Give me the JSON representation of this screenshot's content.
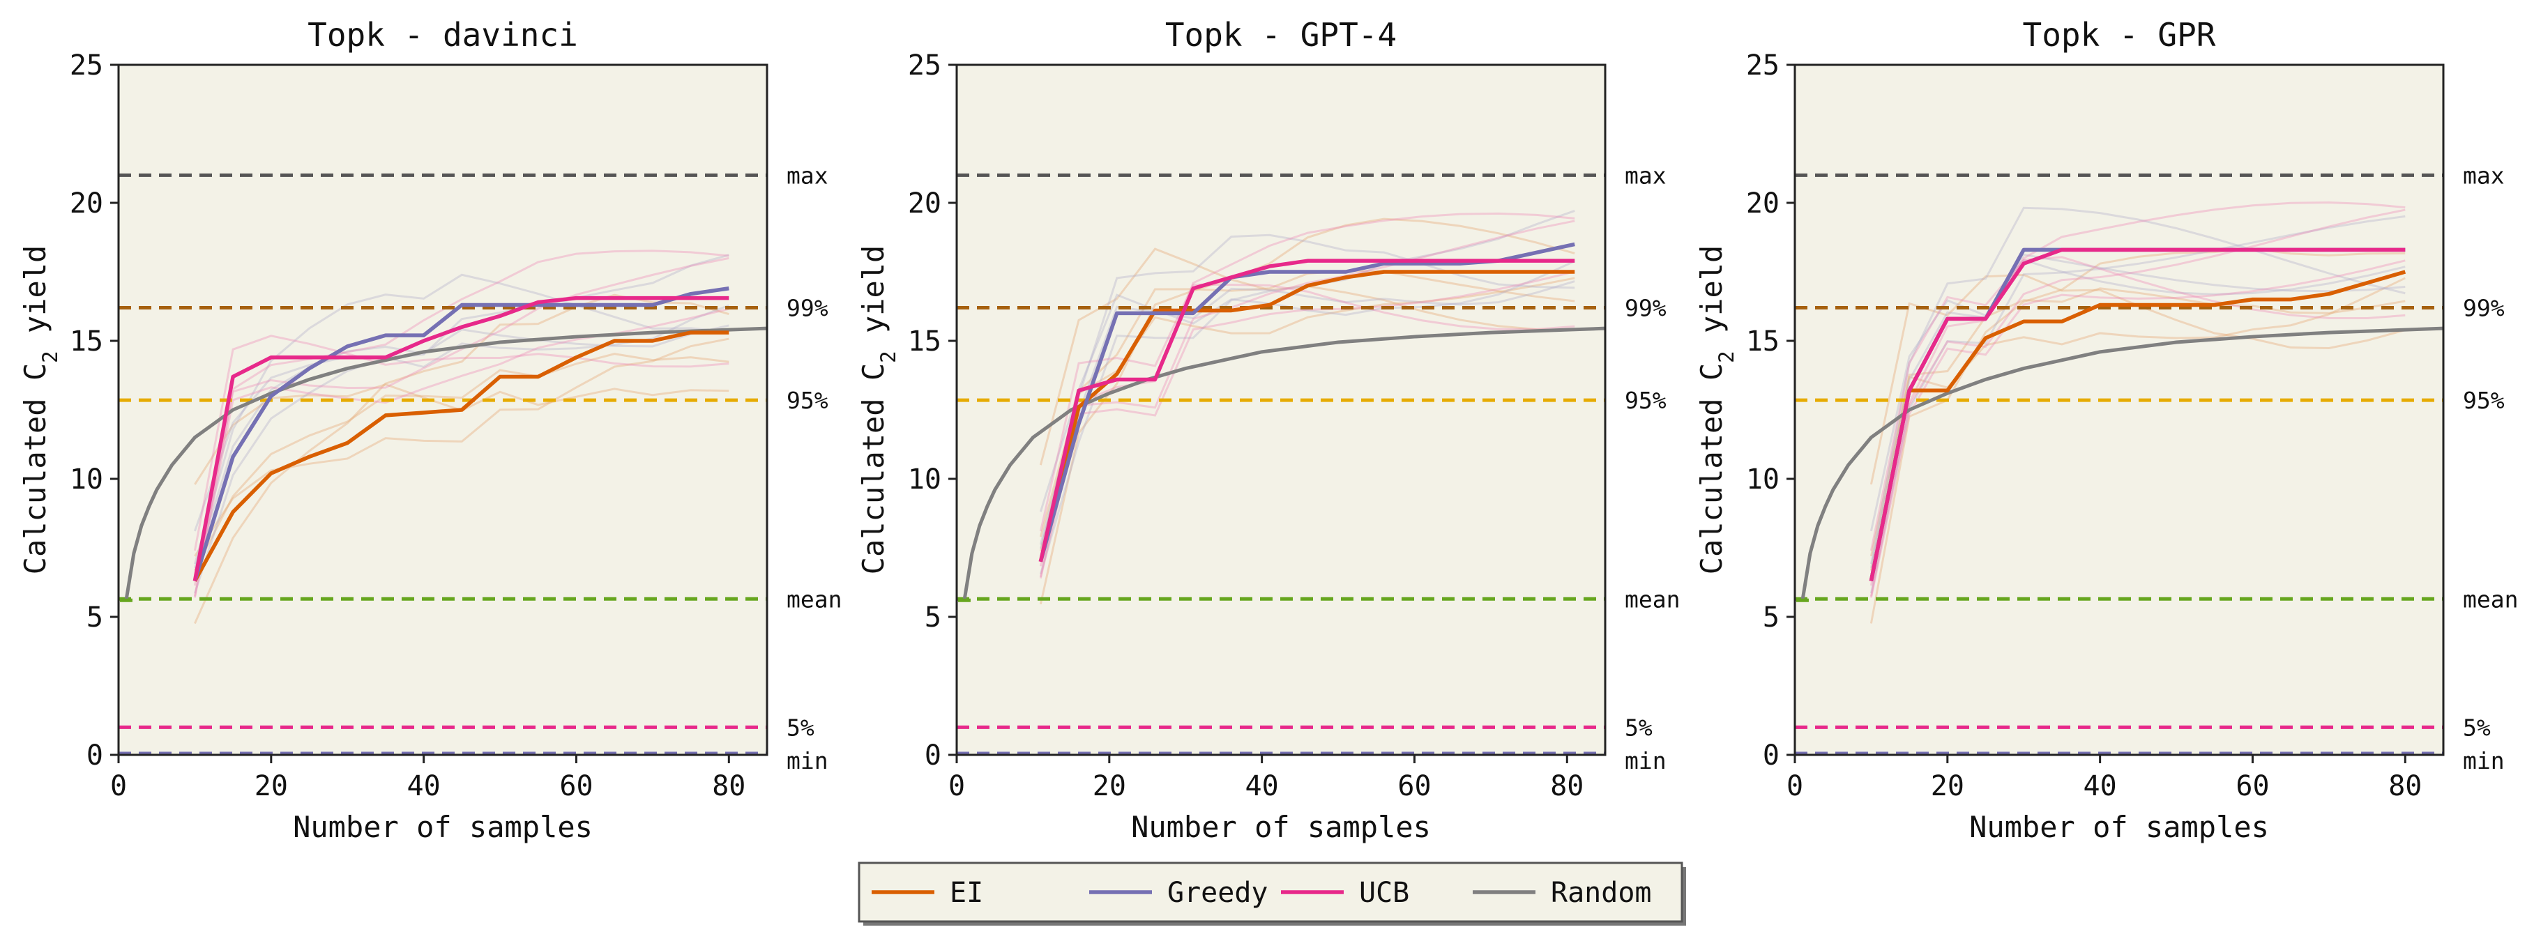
{
  "chart_data": {
    "type": "line",
    "legend": {
      "placement": "bottom-center",
      "entries": [
        {
          "label": "EI",
          "color": "#d95f02"
        },
        {
          "label": "Greedy",
          "color": "#7570b3"
        },
        {
          "label": "UCB",
          "color": "#e7298a"
        },
        {
          "label": "Random",
          "color": "#808080"
        }
      ]
    },
    "reference_lines": [
      {
        "label": "max",
        "y": 21.0,
        "color": "#555555"
      },
      {
        "label": "99%",
        "y": 16.2,
        "color": "#a6610f"
      },
      {
        "label": "95%",
        "y": 12.85,
        "color": "#e6ab02"
      },
      {
        "label": "mean",
        "y": 5.65,
        "color": "#66a61e"
      },
      {
        "label": "5%",
        "y": 1.0,
        "color": "#e7298a"
      },
      {
        "label": "min",
        "y": 0.05,
        "color": "#7570b3"
      }
    ],
    "xlim": [
      0,
      85
    ],
    "ylim": [
      0,
      25
    ],
    "xticks": [
      "0",
      "20",
      "40",
      "60",
      "80"
    ],
    "yticks": [
      "0",
      "5",
      "10",
      "15",
      "20",
      "25"
    ],
    "random_curve": {
      "name": "Random",
      "x": [
        1,
        2,
        3,
        4,
        5,
        7,
        10,
        15,
        20,
        25,
        30,
        40,
        50,
        60,
        70,
        80,
        85
      ],
      "y": [
        5.6,
        7.3,
        8.3,
        9.0,
        9.6,
        10.5,
        11.5,
        12.5,
        13.1,
        13.6,
        14.0,
        14.6,
        14.95,
        15.15,
        15.3,
        15.4,
        15.45
      ]
    },
    "panels": [
      {
        "title": "Topk - davinci",
        "xlabel": "Number of samples",
        "ylabel": "Calculated C",
        "ylabel_sub": "2",
        "ylabel_suffix": " yield",
        "series": [
          {
            "name": "EI",
            "x": [
              10,
              15,
              20,
              25,
              30,
              35,
              40,
              45,
              50,
              55,
              60,
              65,
              70,
              75,
              80
            ],
            "y": [
              6.3,
              8.8,
              10.2,
              10.8,
              11.3,
              12.3,
              12.4,
              12.5,
              13.7,
              13.7,
              14.4,
              15.0,
              15.0,
              15.3,
              15.3
            ]
          },
          {
            "name": "Greedy",
            "x": [
              10,
              15,
              20,
              25,
              30,
              35,
              40,
              45,
              50,
              55,
              60,
              65,
              70,
              75,
              80
            ],
            "y": [
              6.3,
              10.8,
              13.0,
              14.0,
              14.8,
              15.2,
              15.2,
              16.3,
              16.3,
              16.3,
              16.3,
              16.3,
              16.3,
              16.7,
              16.9
            ]
          },
          {
            "name": "UCB",
            "x": [
              10,
              15,
              20,
              25,
              30,
              35,
              40,
              45,
              50,
              55,
              60,
              65,
              70,
              75,
              80
            ],
            "y": [
              6.3,
              13.7,
              14.4,
              14.4,
              14.4,
              14.4,
              15.0,
              15.5,
              15.9,
              16.4,
              16.55,
              16.55,
              16.55,
              16.55,
              16.55
            ]
          }
        ]
      },
      {
        "title": "Topk - GPT-4",
        "xlabel": "Number of samples",
        "ylabel": "Calculated C",
        "ylabel_sub": "2",
        "ylabel_suffix": " yield",
        "series": [
          {
            "name": "EI",
            "x": [
              11,
              16,
              21,
              26,
              31,
              36,
              41,
              46,
              51,
              56,
              61,
              66,
              71,
              76,
              81
            ],
            "y": [
              7.0,
              12.6,
              13.8,
              16.1,
              16.1,
              16.1,
              16.3,
              17.0,
              17.3,
              17.5,
              17.5,
              17.5,
              17.5,
              17.5,
              17.5
            ]
          },
          {
            "name": "Greedy",
            "x": [
              11,
              16,
              21,
              26,
              31,
              36,
              41,
              46,
              51,
              56,
              61,
              66,
              71,
              76,
              81
            ],
            "y": [
              7.0,
              12.0,
              16.0,
              16.0,
              16.0,
              17.3,
              17.5,
              17.5,
              17.5,
              17.8,
              17.8,
              17.8,
              17.9,
              18.2,
              18.5
            ]
          },
          {
            "name": "UCB",
            "x": [
              11,
              16,
              21,
              26,
              31,
              36,
              41,
              46,
              51,
              56,
              61,
              66,
              71,
              76,
              81
            ],
            "y": [
              7.0,
              13.2,
              13.6,
              13.6,
              16.9,
              17.3,
              17.7,
              17.9,
              17.9,
              17.9,
              17.9,
              17.9,
              17.9,
              17.9,
              17.9
            ]
          }
        ]
      },
      {
        "title": "Topk - GPR",
        "xlabel": "Number of samples",
        "ylabel": "Calculated C",
        "ylabel_sub": "2",
        "ylabel_suffix": " yield",
        "series": [
          {
            "name": "EI",
            "x": [
              10,
              15,
              20,
              25,
              30,
              35,
              40,
              45,
              50,
              55,
              60,
              65,
              70,
              75,
              80
            ],
            "y": [
              6.3,
              13.2,
              13.2,
              15.1,
              15.7,
              15.7,
              16.3,
              16.3,
              16.3,
              16.3,
              16.5,
              16.5,
              16.7,
              17.1,
              17.5
            ]
          },
          {
            "name": "Greedy",
            "x": [
              10,
              15,
              20,
              25,
              30,
              35,
              40,
              45,
              50,
              55,
              60,
              65,
              70,
              75,
              80
            ],
            "y": [
              6.3,
              13.2,
              15.8,
              15.8,
              18.3,
              18.3,
              18.3,
              18.3,
              18.3,
              18.3,
              18.3,
              18.3,
              18.3,
              18.3,
              18.3
            ]
          },
          {
            "name": "UCB",
            "x": [
              10,
              15,
              20,
              25,
              30,
              35,
              40,
              45,
              50,
              55,
              60,
              65,
              70,
              75,
              80
            ],
            "y": [
              6.3,
              13.2,
              15.8,
              15.8,
              17.8,
              18.3,
              18.3,
              18.3,
              18.3,
              18.3,
              18.3,
              18.3,
              18.3,
              18.3,
              18.3
            ]
          }
        ]
      }
    ]
  }
}
